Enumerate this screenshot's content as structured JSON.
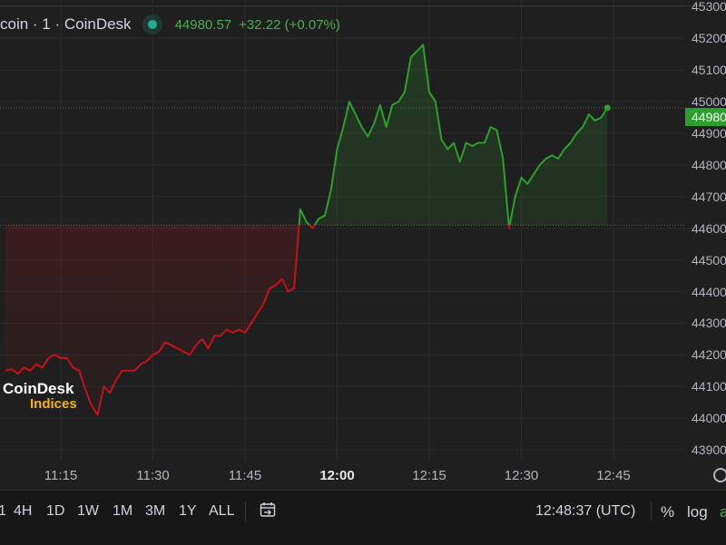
{
  "legend": {
    "symbol": "coin · 1 · CoinDesk",
    "price": "44980.57",
    "change": "+32.22 (+0.07%)"
  },
  "current_price_tag": "44980",
  "watermark": {
    "line1": "CoinDesk",
    "line2": "Indices"
  },
  "toolbar": {
    "ranges": [
      "1",
      "4H",
      "1D",
      "1W",
      "1M",
      "3M",
      "1Y",
      "ALL"
    ],
    "calendar_icon": "calendar-arrow-icon",
    "clock": "12:48:37 (UTC)",
    "percent": "%",
    "log": "log",
    "auto": "a"
  },
  "colors": {
    "up": "#2e9e2e",
    "down": "#c4121a",
    "accent": "#22ab94"
  },
  "chart_data": {
    "type": "line",
    "x_ticks": [
      "11:15",
      "11:30",
      "11:45",
      "12:00",
      "12:15",
      "12:30",
      "12:45"
    ],
    "x_ticks_bold": [
      "12:00"
    ],
    "y_ticks": [
      43900,
      44000,
      44100,
      44200,
      44300,
      44400,
      44500,
      44600,
      44700,
      44800,
      44900,
      45000,
      45100,
      45200,
      45300
    ],
    "ylim": [
      43880,
      45320
    ],
    "xlim": [
      "11:06",
      "12:59"
    ],
    "baseline": 44610,
    "current": 44980.57,
    "series": [
      {
        "values": [
          [
            "11:06",
            44150
          ],
          [
            "11:07",
            44155
          ],
          [
            "11:08",
            44140
          ],
          [
            "11:09",
            44160
          ],
          [
            "11:10",
            44150
          ],
          [
            "11:11",
            44170
          ],
          [
            "11:12",
            44160
          ],
          [
            "11:13",
            44190
          ],
          [
            "11:14",
            44200
          ],
          [
            "11:15",
            44190
          ],
          [
            "11:16",
            44190
          ],
          [
            "11:17",
            44160
          ],
          [
            "11:18",
            44150
          ],
          [
            "11:19",
            44090
          ],
          [
            "11:20",
            44040
          ],
          [
            "11:21",
            44010
          ],
          [
            "11:22",
            44100
          ],
          [
            "11:23",
            44080
          ],
          [
            "11:24",
            44120
          ],
          [
            "11:25",
            44150
          ],
          [
            "11:26",
            44150
          ],
          [
            "11:27",
            44150
          ],
          [
            "11:28",
            44170
          ],
          [
            "11:29",
            44180
          ],
          [
            "11:30",
            44200
          ],
          [
            "11:31",
            44210
          ],
          [
            "11:32",
            44240
          ],
          [
            "11:33",
            44230
          ],
          [
            "11:34",
            44220
          ],
          [
            "11:35",
            44210
          ],
          [
            "11:36",
            44200
          ],
          [
            "11:37",
            44230
          ],
          [
            "11:38",
            44250
          ],
          [
            "11:39",
            44220
          ],
          [
            "11:40",
            44260
          ],
          [
            "11:41",
            44260
          ],
          [
            "11:42",
            44280
          ],
          [
            "11:43",
            44270
          ],
          [
            "11:44",
            44280
          ],
          [
            "11:45",
            44270
          ],
          [
            "11:46",
            44300
          ],
          [
            "11:47",
            44330
          ],
          [
            "11:48",
            44360
          ],
          [
            "11:49",
            44410
          ],
          [
            "11:50",
            44420
          ],
          [
            "11:51",
            44440
          ],
          [
            "11:52",
            44400
          ],
          [
            "11:53",
            44410
          ],
          [
            "11:54",
            44660
          ],
          [
            "11:55",
            44620
          ],
          [
            "11:56",
            44600
          ],
          [
            "11:57",
            44630
          ],
          [
            "11:58",
            44640
          ],
          [
            "11:59",
            44720
          ],
          [
            "12:00",
            44850
          ],
          [
            "12:01",
            44920
          ],
          [
            "12:02",
            45000
          ],
          [
            "12:03",
            44960
          ],
          [
            "12:04",
            44920
          ],
          [
            "12:05",
            44890
          ],
          [
            "12:06",
            44930
          ],
          [
            "12:07",
            44990
          ],
          [
            "12:08",
            44920
          ],
          [
            "12:09",
            44990
          ],
          [
            "12:10",
            45000
          ],
          [
            "12:11",
            45030
          ],
          [
            "12:12",
            45140
          ],
          [
            "12:13",
            45160
          ],
          [
            "12:14",
            45180
          ],
          [
            "12:15",
            45030
          ],
          [
            "12:16",
            45000
          ],
          [
            "12:17",
            44880
          ],
          [
            "12:18",
            44850
          ],
          [
            "12:19",
            44870
          ],
          [
            "12:20",
            44810
          ],
          [
            "12:21",
            44870
          ],
          [
            "12:22",
            44860
          ],
          [
            "12:23",
            44870
          ],
          [
            "12:24",
            44870
          ],
          [
            "12:25",
            44920
          ],
          [
            "12:26",
            44910
          ],
          [
            "12:27",
            44820
          ],
          [
            "12:28",
            44600
          ],
          [
            "12:29",
            44700
          ],
          [
            "12:30",
            44760
          ],
          [
            "12:31",
            44740
          ],
          [
            "12:32",
            44770
          ],
          [
            "12:33",
            44800
          ],
          [
            "12:34",
            44820
          ],
          [
            "12:35",
            44830
          ],
          [
            "12:36",
            44820
          ],
          [
            "12:37",
            44850
          ],
          [
            "12:38",
            44870
          ],
          [
            "12:39",
            44900
          ],
          [
            "12:40",
            44920
          ],
          [
            "12:41",
            44960
          ],
          [
            "12:42",
            44940
          ],
          [
            "12:43",
            44950
          ],
          [
            "12:44",
            44980.57
          ]
        ]
      }
    ],
    "grid": true
  }
}
